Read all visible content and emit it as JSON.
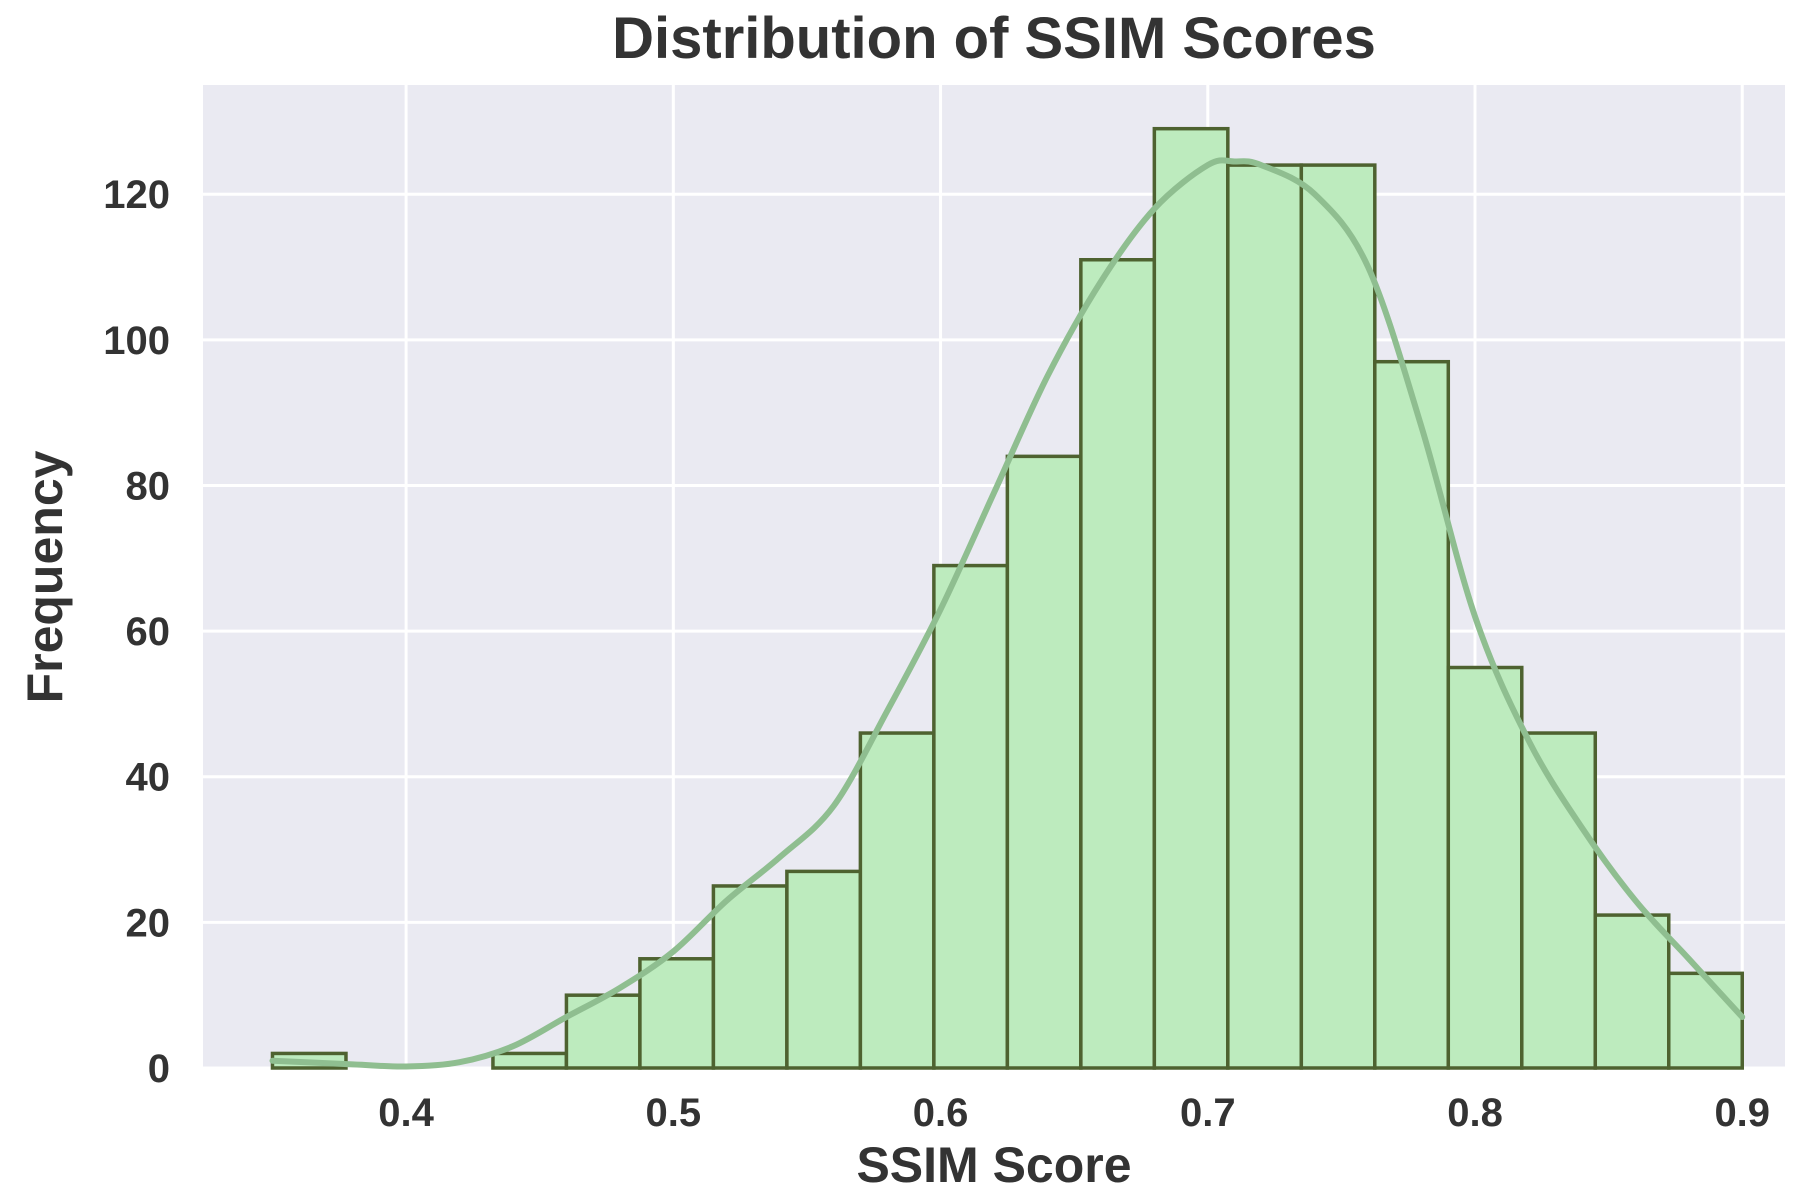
{
  "chart_data": {
    "type": "bar",
    "title": "Distribution of SSIM Scores",
    "xlabel": "SSIM Score",
    "ylabel": "Frequency",
    "xlim": [
      0.324,
      0.916
    ],
    "ylim": [
      0,
      135
    ],
    "xticks": [
      {
        "value": 0.4,
        "label": "0.4"
      },
      {
        "value": 0.5,
        "label": "0.5"
      },
      {
        "value": 0.6,
        "label": "0.6"
      },
      {
        "value": 0.7,
        "label": "0.7"
      },
      {
        "value": 0.8,
        "label": "0.8"
      },
      {
        "value": 0.9,
        "label": "0.9"
      }
    ],
    "yticks": [
      {
        "value": 0,
        "label": "0"
      },
      {
        "value": 20,
        "label": "20"
      },
      {
        "value": 40,
        "label": "40"
      },
      {
        "value": 60,
        "label": "60"
      },
      {
        "value": 80,
        "label": "80"
      },
      {
        "value": 100,
        "label": "100"
      },
      {
        "value": 120,
        "label": "120"
      }
    ],
    "bin_edges": [
      0.35,
      0.3775,
      0.405,
      0.4325,
      0.46,
      0.4875,
      0.515,
      0.5425,
      0.57,
      0.5975,
      0.625,
      0.6525,
      0.68,
      0.7075,
      0.735,
      0.7625,
      0.79,
      0.8175,
      0.845,
      0.8725,
      0.9
    ],
    "counts": [
      2,
      0,
      0,
      2,
      10,
      15,
      25,
      27,
      46,
      69,
      84,
      111,
      129,
      124,
      124,
      97,
      55,
      46,
      21,
      13
    ],
    "kde": {
      "x": [
        0.35,
        0.38,
        0.4,
        0.42,
        0.44,
        0.46,
        0.48,
        0.5,
        0.52,
        0.54,
        0.56,
        0.58,
        0.6,
        0.62,
        0.64,
        0.66,
        0.68,
        0.7,
        0.71,
        0.72,
        0.74,
        0.76,
        0.78,
        0.8,
        0.82,
        0.84,
        0.86,
        0.88,
        0.9
      ],
      "y": [
        1,
        0.5,
        0.2,
        0.8,
        3,
        7,
        11,
        16,
        23,
        29,
        36,
        49,
        63,
        79,
        95,
        108,
        118,
        124,
        124.5,
        124,
        120,
        110,
        88,
        62,
        45,
        33,
        23,
        15,
        7
      ]
    },
    "grid": true,
    "colors": {
      "background": "#eaeaf2",
      "grid": "#ffffff",
      "bar_fill": "#bdebbe",
      "bar_edge": "#4e6230",
      "kde_line": "#8fbe90",
      "text": "#333333"
    }
  }
}
